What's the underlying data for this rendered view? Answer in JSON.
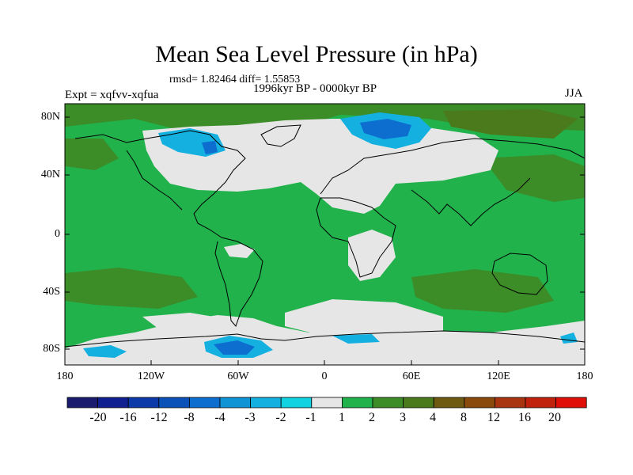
{
  "title": "Mean Sea Level Pressure (in hPa)",
  "stats": "rmsd= 1.82464 diff= 1.55853",
  "experiment": "Expt = xqfvv-xqfua",
  "period": "1996kyr BP - 0000kyr BP",
  "season": "JJA",
  "lat_axis": [
    "80N",
    "40N",
    "0",
    "40S",
    "80S"
  ],
  "lon_axis": [
    "180",
    "120W",
    "60W",
    "0",
    "60E",
    "120E",
    "180"
  ],
  "colorbar": {
    "labels": [
      "-20",
      "-16",
      "-12",
      "-8",
      "-4",
      "-3",
      "-2",
      "-1",
      "1",
      "2",
      "3",
      "4",
      "8",
      "12",
      "16",
      "20"
    ],
    "colors": [
      "#1a1a6e",
      "#102090",
      "#0c3aa8",
      "#0a52b8",
      "#0d6ed0",
      "#1094d6",
      "#14b0e0",
      "#10d2e0",
      "#e6e6e6",
      "#22b24c",
      "#3c8c28",
      "#4a7a1c",
      "#6e5a10",
      "#8a4a0c",
      "#a83410",
      "#c0220e",
      "#e01008"
    ]
  },
  "colors": {
    "green": "#22b24c",
    "grey": "#e6e6e6",
    "olive": "#3c8c28",
    "cyan": "#14b0e0",
    "blue": "#0d6ed0"
  }
}
